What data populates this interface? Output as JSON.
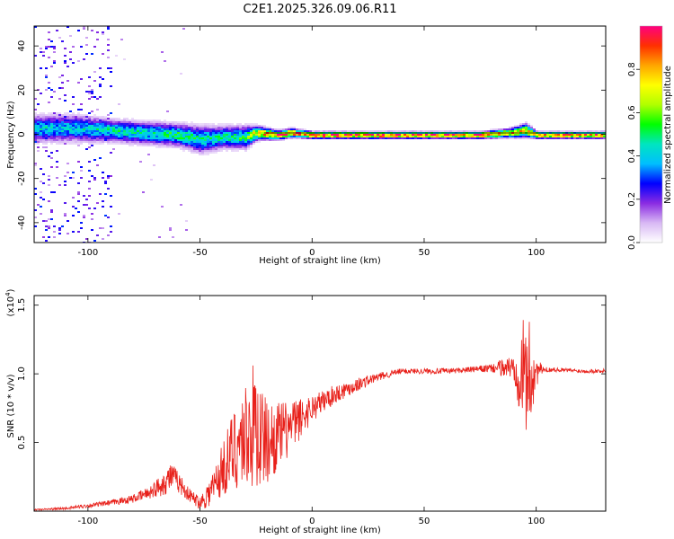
{
  "title": "C2E1.2025.326.09.06.R11",
  "chart_data": [
    {
      "type": "heatmap",
      "title": "",
      "xlabel": "Height of straight line (km)",
      "ylabel": "Frequency (Hz)",
      "xlim": [
        -124,
        131
      ],
      "ylim": [
        -49,
        49
      ],
      "xticks": [
        -100,
        -50,
        0,
        50,
        100
      ],
      "yticks": [
        -40,
        -20,
        0,
        20,
        40
      ],
      "colorbar": {
        "label": "Normalized spectral amplitude",
        "range": [
          0,
          1
        ],
        "ticks": [
          "0.0",
          "0.2",
          "0.4",
          "0.6",
          "0.8"
        ],
        "colormap": [
          "#ffffff",
          "#d8b8f4",
          "#8a2be2",
          "#0000ff",
          "#00bfff",
          "#00e5c0",
          "#00ff00",
          "#b0ff00",
          "#ffff00",
          "#ffa500",
          "#ff3000",
          "#ff0080"
        ]
      },
      "signal_band": {
        "x": [
          -105,
          -90,
          -75,
          -60,
          -50,
          -40,
          -30,
          -25,
          -15,
          -10,
          0,
          25,
          50,
          75,
          88,
          95,
          100,
          131
        ],
        "center_hz": [
          3,
          2,
          1,
          0,
          -2,
          -1,
          -1,
          1,
          0,
          1,
          0,
          0,
          0,
          0,
          1,
          2,
          0,
          0
        ],
        "half_width_hz": [
          6,
          5,
          5,
          5,
          6,
          5,
          5,
          3,
          2,
          2,
          1.5,
          1.5,
          1.5,
          1.5,
          2,
          3,
          1.5,
          1.5
        ],
        "peak_amplitude": [
          0.4,
          0.45,
          0.45,
          0.5,
          0.45,
          0.45,
          0.5,
          0.75,
          0.85,
          0.9,
          0.95,
          0.95,
          0.9,
          0.9,
          0.8,
          0.75,
          0.85,
          0.85
        ]
      },
      "scattered_noise_region": {
        "x": [
          -124,
          -90
        ],
        "amplitude": 0.3
      }
    },
    {
      "type": "line",
      "title": "",
      "xlabel": "Height of straight line (km)",
      "ylabel": "SNR (10 * v/v)",
      "y_multiplier_label": "(x10",
      "y_multiplier_exp": "4",
      "xlim": [
        -124,
        131
      ],
      "ylim": [
        0,
        1.57
      ],
      "xticks": [
        -100,
        -50,
        0,
        50,
        100
      ],
      "yticks": [
        "0.5",
        "1.0",
        "1.5"
      ],
      "line_color": "#e8201a",
      "series": [
        {
          "x": [
            -124,
            -110,
            -100,
            -90,
            -80,
            -75,
            -70,
            -65,
            -63,
            -60,
            -55,
            -50,
            -45,
            -40,
            -35,
            -30,
            -27,
            -25,
            -23,
            -20,
            -15,
            -10,
            -5,
            0,
            10,
            20,
            30,
            40,
            50,
            60,
            70,
            80,
            90,
            94,
            96,
            98,
            100,
            103,
            110,
            120,
            131
          ],
          "y": [
            0.01,
            0.02,
            0.04,
            0.06,
            0.09,
            0.12,
            0.16,
            0.22,
            0.26,
            0.22,
            0.12,
            0.06,
            0.15,
            0.3,
            0.45,
            0.55,
            0.6,
            0.62,
            0.55,
            0.5,
            0.55,
            0.6,
            0.68,
            0.75,
            0.85,
            0.92,
            0.98,
            1.02,
            1.02,
            1.02,
            1.03,
            1.04,
            1.05,
            1.0,
            0.98,
            1.0,
            1.02,
            1.03,
            1.03,
            1.02,
            1.02
          ],
          "noise": [
            0.005,
            0.01,
            0.015,
            0.02,
            0.03,
            0.04,
            0.06,
            0.1,
            0.1,
            0.08,
            0.05,
            0.05,
            0.12,
            0.2,
            0.3,
            0.38,
            0.45,
            0.5,
            0.4,
            0.3,
            0.25,
            0.2,
            0.15,
            0.1,
            0.07,
            0.05,
            0.03,
            0.02,
            0.02,
            0.02,
            0.02,
            0.03,
            0.1,
            0.4,
            0.45,
            0.35,
            0.12,
            0.02,
            0.015,
            0.015,
            0.015
          ]
        }
      ]
    }
  ]
}
